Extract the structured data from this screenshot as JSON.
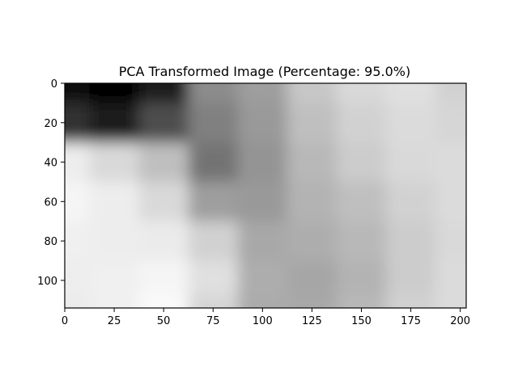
{
  "chart_data": {
    "type": "heatmap",
    "title": "PCA Transformed Image (Percentage: 95.0%)",
    "xlabel": "",
    "ylabel": "",
    "colormap": "gray",
    "xlim": [
      0,
      203
    ],
    "ylim": [
      114,
      0
    ],
    "grid": false,
    "legend": "none",
    "x_ticks": [
      0,
      25,
      50,
      75,
      100,
      125,
      150,
      175,
      200
    ],
    "y_ticks": [
      0,
      20,
      40,
      60,
      80,
      100
    ],
    "intensity_columns": [
      0,
      25,
      50,
      75,
      100,
      125,
      150,
      175,
      200
    ],
    "intensity_rows": [
      0,
      20,
      40,
      60,
      80,
      100,
      114
    ],
    "intensity": [
      [
        0.05,
        0.02,
        0.1,
        0.55,
        0.62,
        0.78,
        0.85,
        0.88,
        0.82
      ],
      [
        0.2,
        0.12,
        0.3,
        0.5,
        0.6,
        0.75,
        0.82,
        0.86,
        0.84
      ],
      [
        0.93,
        0.85,
        0.75,
        0.45,
        0.58,
        0.72,
        0.8,
        0.85,
        0.86
      ],
      [
        0.96,
        0.93,
        0.85,
        0.62,
        0.6,
        0.7,
        0.75,
        0.82,
        0.86
      ],
      [
        0.94,
        0.93,
        0.92,
        0.82,
        0.66,
        0.68,
        0.72,
        0.8,
        0.85
      ],
      [
        0.93,
        0.94,
        0.96,
        0.88,
        0.68,
        0.65,
        0.7,
        0.8,
        0.86
      ],
      [
        0.92,
        0.94,
        0.98,
        0.84,
        0.67,
        0.66,
        0.72,
        0.82,
        0.86
      ]
    ]
  }
}
